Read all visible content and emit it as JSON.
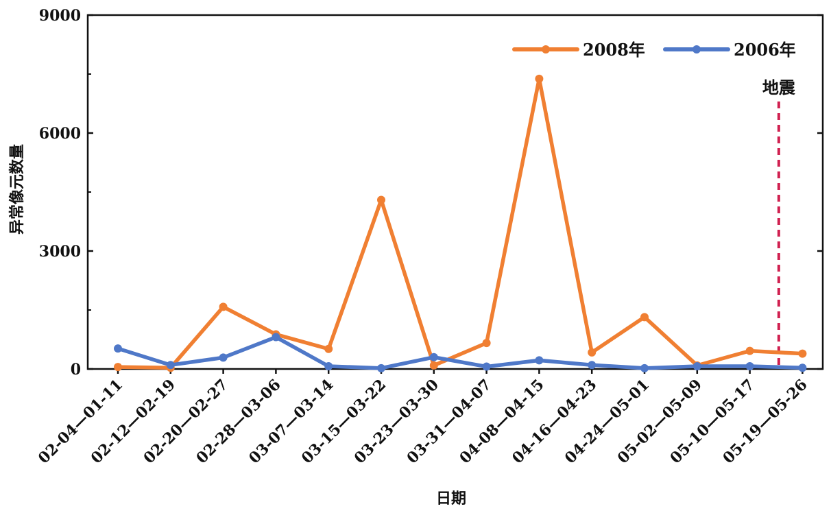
{
  "chart_data": {
    "type": "line",
    "title": "",
    "xlabel": "日期",
    "ylabel": "异常像元数量",
    "ylim": [
      0,
      9000
    ],
    "yticks": [
      "0",
      "3000",
      "6000",
      "9000"
    ],
    "categories": [
      "02-04—01-11",
      "02-12—02-19",
      "02-20—02-27",
      "02-28—03-06",
      "03-07—03-14",
      "03-15—03-22",
      "03-23—03-30",
      "03-31—04-07",
      "04-08—04-15",
      "04-16—04-23",
      "04-24—05-01",
      "05-02—05-09",
      "05-10—05-17",
      "05-19—05-26"
    ],
    "series": [
      {
        "name": "2008年",
        "color": "#F07F32",
        "values": [
          50,
          30,
          1580,
          880,
          510,
          4300,
          90,
          660,
          7380,
          420,
          1320,
          90,
          460,
          390
        ]
      },
      {
        "name": "2006年",
        "color": "#4F78C8",
        "values": [
          520,
          100,
          290,
          810,
          70,
          20,
          300,
          60,
          220,
          100,
          20,
          70,
          70,
          30
        ]
      }
    ],
    "annotation": {
      "label": "地震",
      "color": "#D02050",
      "position_between": [
        "05-10—05-17",
        "05-19—05-26"
      ],
      "fraction": 0.55
    },
    "legend_position": "top-right",
    "grid": false
  }
}
